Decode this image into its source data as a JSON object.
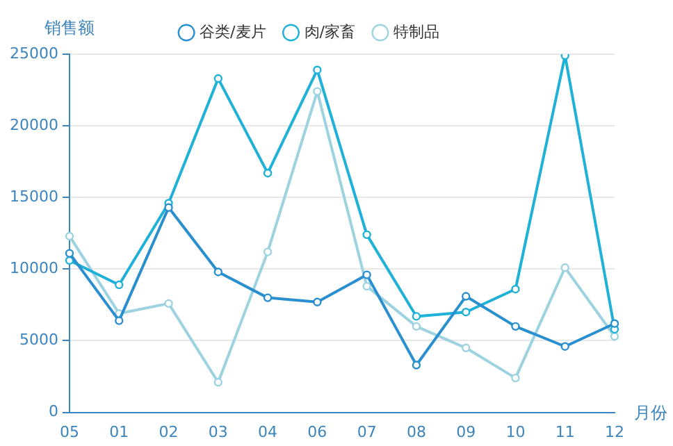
{
  "chart_data": {
    "type": "line",
    "xlabel": "月份",
    "ylabel": "销售额",
    "categories": [
      "05",
      "01",
      "02",
      "03",
      "04",
      "06",
      "07",
      "08",
      "09",
      "10",
      "11",
      "12"
    ],
    "series": [
      {
        "name": "谷类/麦片",
        "color": "#2a8fce",
        "values": [
          11100,
          6400,
          14300,
          9800,
          8000,
          7700,
          9600,
          3300,
          8100,
          6000,
          4600,
          6200
        ]
      },
      {
        "name": "肉/家畜",
        "color": "#1fb1d8",
        "values": [
          10600,
          8900,
          14600,
          23300,
          16700,
          23900,
          12400,
          6700,
          7000,
          8600,
          24900,
          5800
        ]
      },
      {
        "name": "特制品",
        "color": "#9dd3e0",
        "values": [
          12300,
          6900,
          7600,
          2100,
          11200,
          22400,
          8800,
          6000,
          4500,
          2400,
          10100,
          5300
        ]
      }
    ],
    "ylim": [
      0,
      25000
    ],
    "yticks": [
      0,
      5000,
      10000,
      15000,
      20000,
      25000
    ],
    "grid": "y",
    "legend": "top",
    "marker": "circle",
    "line_style": "solid"
  }
}
